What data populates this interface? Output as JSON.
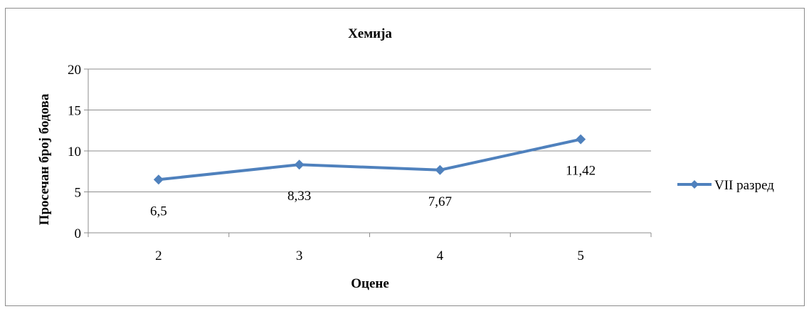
{
  "chart_data": {
    "type": "line",
    "title": "Хемија",
    "xlabel": "Оцене",
    "ylabel": "Просечан број бодова",
    "categories": [
      "2",
      "3",
      "4",
      "5"
    ],
    "series": [
      {
        "name": "VII разред",
        "values": [
          6.5,
          8.33,
          7.67,
          11.42
        ],
        "data_labels": [
          "6,5",
          "8,33",
          "7,67",
          "11,42"
        ],
        "color": "#4f81bd"
      }
    ],
    "ylim": [
      0,
      20
    ],
    "yticks": [
      0,
      5,
      10,
      15,
      20
    ],
    "grid": true,
    "legend_position": "right"
  }
}
